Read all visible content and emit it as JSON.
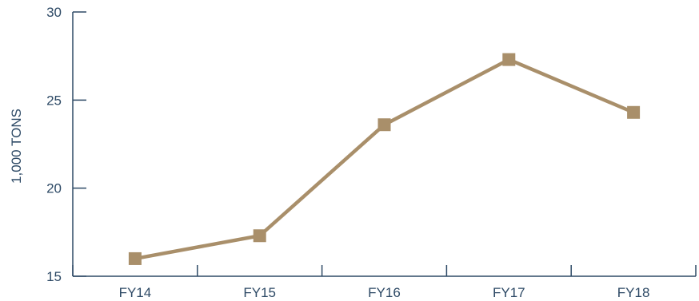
{
  "chart_data": {
    "type": "line",
    "categories": [
      "FY14",
      "FY15",
      "FY16",
      "FY17",
      "FY18"
    ],
    "series": [
      {
        "values": [
          16.0,
          17.3,
          23.6,
          27.3,
          24.3
        ]
      }
    ],
    "ylabel": "1,000 TONS",
    "xlabel": "",
    "ylim": [
      15,
      30
    ],
    "yticks": [
      15,
      20,
      25,
      30
    ],
    "grid": false,
    "marker": "square",
    "line_color": "#a98f6a",
    "axis_color": "#2e4a66"
  }
}
